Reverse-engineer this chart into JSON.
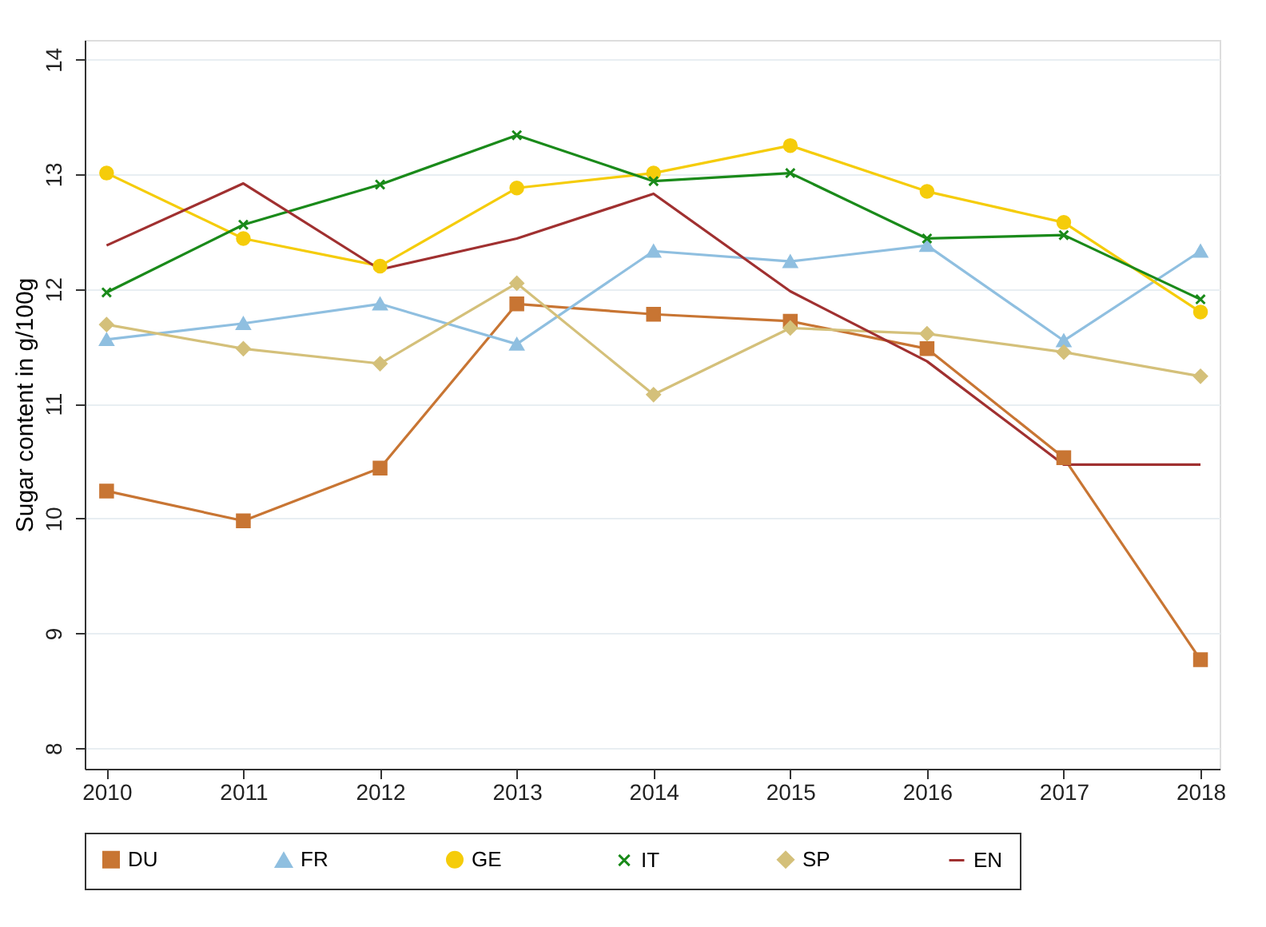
{
  "chart_data": {
    "type": "line",
    "ylabel": "Sugar content in g/100g",
    "x": [
      2010,
      2011,
      2012,
      2013,
      2014,
      2015,
      2016,
      2017,
      2018
    ],
    "series": [
      {
        "name": "DU",
        "color": "#c87533",
        "marker": "square",
        "values": [
          10.24,
          9.98,
          10.44,
          11.87,
          11.78,
          11.72,
          11.48,
          10.53,
          8.77
        ]
      },
      {
        "name": "FR",
        "color": "#8fbfe0",
        "marker": "triangle",
        "values": [
          11.56,
          11.7,
          11.87,
          11.52,
          12.33,
          12.24,
          12.38,
          11.55,
          12.33
        ]
      },
      {
        "name": "GE",
        "color": "#f5cc0a",
        "marker": "circle",
        "values": [
          13.01,
          12.44,
          12.2,
          12.88,
          13.01,
          13.25,
          12.85,
          12.58,
          11.8
        ]
      },
      {
        "name": "IT",
        "color": "#1a8a1a",
        "marker": "cross",
        "values": [
          11.97,
          12.56,
          12.91,
          13.34,
          12.94,
          13.01,
          12.44,
          12.47,
          11.91
        ]
      },
      {
        "name": "SP",
        "color": "#d4c07a",
        "marker": "diamond",
        "values": [
          11.69,
          11.48,
          11.35,
          12.05,
          11.08,
          11.66,
          11.61,
          11.45,
          11.24
        ]
      },
      {
        "name": "EN",
        "color": "#a03030",
        "marker": "none",
        "values": [
          12.38,
          12.92,
          12.17,
          12.44,
          12.83,
          11.98,
          11.37,
          10.47,
          10.47
        ]
      }
    ],
    "xlim": [
      2009.84,
      2018.14
    ],
    "xticks": [
      2010,
      2011,
      2012,
      2013,
      2014,
      2015,
      2016,
      2017,
      2018
    ],
    "ylim": [
      7.82,
      14.17
    ],
    "yticks": [
      8,
      9,
      10,
      11,
      12,
      13,
      14
    ],
    "grid": "y",
    "legend": "bottom",
    "line_style": "solid"
  }
}
